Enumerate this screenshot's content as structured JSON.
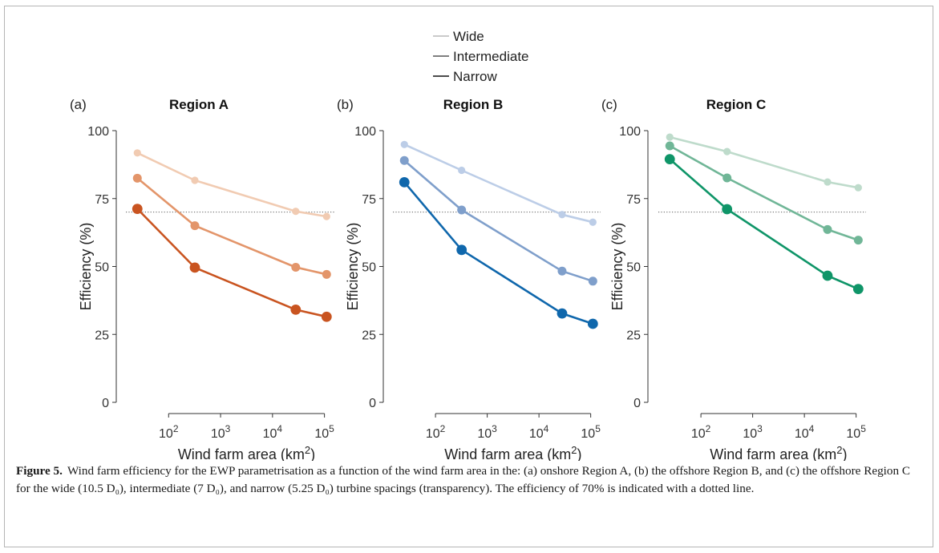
{
  "legend": {
    "items": [
      {
        "label": "Wide",
        "color": "#b8b8b8"
      },
      {
        "label": "Intermediate",
        "color": "#555555"
      },
      {
        "label": "Narrow",
        "color": "#111111"
      }
    ]
  },
  "x_tick_labels": [
    "10",
    "10",
    "10",
    "10"
  ],
  "x_tick_exponents": [
    "2",
    "3",
    "4",
    "5"
  ],
  "y_tick_labels": [
    "0",
    "25",
    "50",
    "75",
    "100"
  ],
  "xlabel_main": "Wind farm area (km",
  "xlabel_sup": "2",
  "xlabel_close": ")",
  "ylabel": "Efficiency (%)",
  "chart_data": [
    {
      "type": "line",
      "panel_label": "(a)",
      "title": "Region A",
      "x_scale": "log",
      "x": [
        25,
        320,
        28000,
        110000
      ],
      "ylim": [
        0,
        100
      ],
      "reference_line": {
        "y": 70,
        "style": "dotted"
      },
      "series": [
        {
          "name": "Wide",
          "color": "#f1cbb2",
          "values": [
            91.8,
            81.7,
            70.3,
            68.4
          ]
        },
        {
          "name": "Intermediate",
          "color": "#e3956a",
          "values": [
            82.5,
            65.0,
            49.7,
            47.1
          ]
        },
        {
          "name": "Narrow",
          "color": "#c95420",
          "values": [
            71.2,
            49.6,
            34.1,
            31.5
          ]
        }
      ]
    },
    {
      "type": "line",
      "panel_label": "(b)",
      "title": "Region B",
      "x_scale": "log",
      "x": [
        25,
        320,
        28000,
        110000
      ],
      "ylim": [
        0,
        100
      ],
      "reference_line": {
        "y": 70,
        "style": "dotted"
      },
      "series": [
        {
          "name": "Wide",
          "color": "#bccde7",
          "values": [
            94.9,
            85.4,
            69.1,
            66.3
          ]
        },
        {
          "name": "Intermediate",
          "color": "#7f9fcb",
          "values": [
            89.0,
            70.8,
            48.3,
            44.6
          ]
        },
        {
          "name": "Narrow",
          "color": "#0f67ac",
          "values": [
            81.0,
            56.1,
            32.7,
            28.9
          ]
        }
      ]
    },
    {
      "type": "line",
      "panel_label": "(c)",
      "title": "Region C",
      "x_scale": "log",
      "x": [
        25,
        320,
        28000,
        110000
      ],
      "ylim": [
        0,
        100
      ],
      "reference_line": {
        "y": 70,
        "style": "dotted"
      },
      "series": [
        {
          "name": "Wide",
          "color": "#bedbcb",
          "values": [
            97.6,
            92.3,
            81.1,
            79.0
          ]
        },
        {
          "name": "Intermediate",
          "color": "#70b697",
          "values": [
            94.4,
            82.6,
            63.6,
            59.7
          ]
        },
        {
          "name": "Narrow",
          "color": "#0f9568",
          "values": [
            89.5,
            71.1,
            46.6,
            41.7
          ]
        }
      ]
    }
  ],
  "caption": {
    "label": "Figure 5.",
    "text": "Wind farm efficiency for the EWP parametrisation as a function of the wind farm area in the: (a) onshore Region A, (b) the offshore Region B, and (c) the offshore Region C for the wide (10.5 D₀), intermediate (7 D₀), and narrow (5.25 D₀) turbine spacings (transparency). The efficiency of 70% is indicated with a dotted line."
  }
}
